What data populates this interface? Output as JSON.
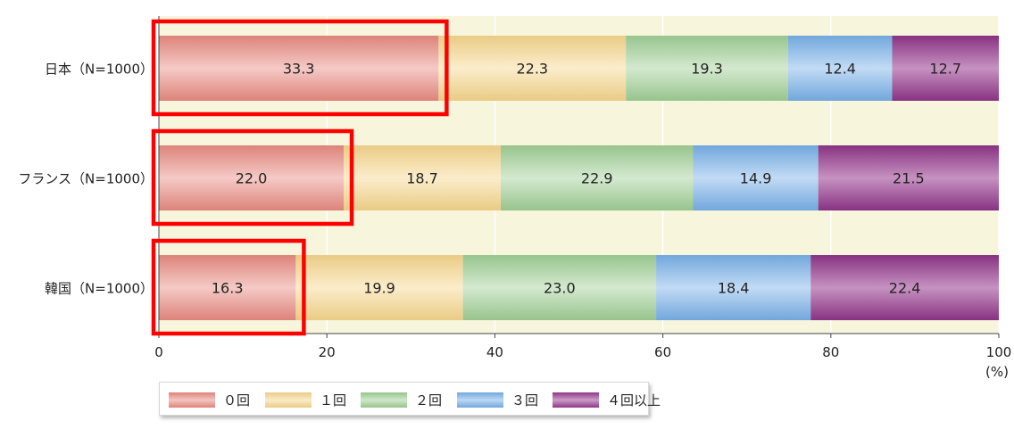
{
  "chart_data": {
    "type": "bar",
    "orientation": "horizontal",
    "stacked": true,
    "categories": [
      "日本（N=1000）",
      "フランス（N=1000）",
      "韓国（N=1000）"
    ],
    "series": [
      {
        "name": "０回",
        "color": "#e98a80",
        "values": [
          33.3,
          22.0,
          16.3
        ]
      },
      {
        "name": "１回",
        "color": "#f6d68c",
        "values": [
          22.3,
          18.7,
          19.9
        ]
      },
      {
        "name": "２回",
        "color": "#9fce94",
        "values": [
          19.3,
          22.9,
          23.0
        ]
      },
      {
        "name": "３回",
        "color": "#78b0e8",
        "values": [
          12.4,
          14.9,
          18.4
        ]
      },
      {
        "name": "４回以上",
        "color": "#97388f",
        "values": [
          12.7,
          21.5,
          22.4
        ]
      }
    ],
    "xlim": [
      0,
      100
    ],
    "xticks": [
      0,
      20,
      40,
      60,
      80,
      100
    ],
    "xunit": "(%)",
    "grid": true,
    "legend_position": "bottom-left",
    "highlighted_series": "０回",
    "highlight_color": "#ff0000",
    "plot_background": "#f7f5dc"
  }
}
